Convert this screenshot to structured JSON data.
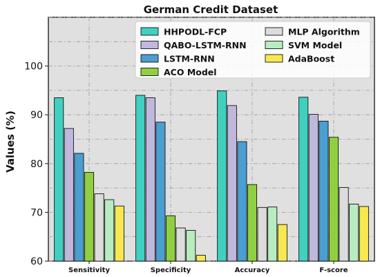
{
  "chart_data": {
    "type": "bar",
    "title": "German Credit Dataset",
    "xlabel": "",
    "ylabel": "Values (%)",
    "ylim": [
      60,
      110
    ],
    "yticks": [
      60,
      70,
      80,
      90,
      100
    ],
    "grid": true,
    "legend_position": "top-right",
    "categories": [
      "Sensitivity",
      "Specificity",
      "Accuracy",
      "F-score"
    ],
    "series": [
      {
        "name": "HHPODL-FCP",
        "color": "#40d0c0",
        "values": [
          93.5,
          94.0,
          94.9,
          93.6
        ]
      },
      {
        "name": "QABO-LSTM-RNN",
        "color": "#c0b8dc",
        "values": [
          87.2,
          93.5,
          91.9,
          90.1
        ]
      },
      {
        "name": "LSTM-RNN",
        "color": "#4a9ed0",
        "values": [
          82.1,
          88.5,
          84.5,
          88.7
        ]
      },
      {
        "name": "ACO Model",
        "color": "#90d040",
        "values": [
          78.2,
          69.3,
          75.7,
          85.4
        ]
      },
      {
        "name": "MLP Algorithm",
        "color": "#dcdcdc",
        "values": [
          73.8,
          66.8,
          71.0,
          75.1
        ]
      },
      {
        "name": "SVM Model",
        "color": "#b8ecc0",
        "values": [
          72.6,
          66.3,
          71.1,
          71.7
        ]
      },
      {
        "name": "AdaBoost",
        "color": "#f8e850",
        "values": [
          71.3,
          61.2,
          67.5,
          71.2
        ]
      }
    ]
  }
}
